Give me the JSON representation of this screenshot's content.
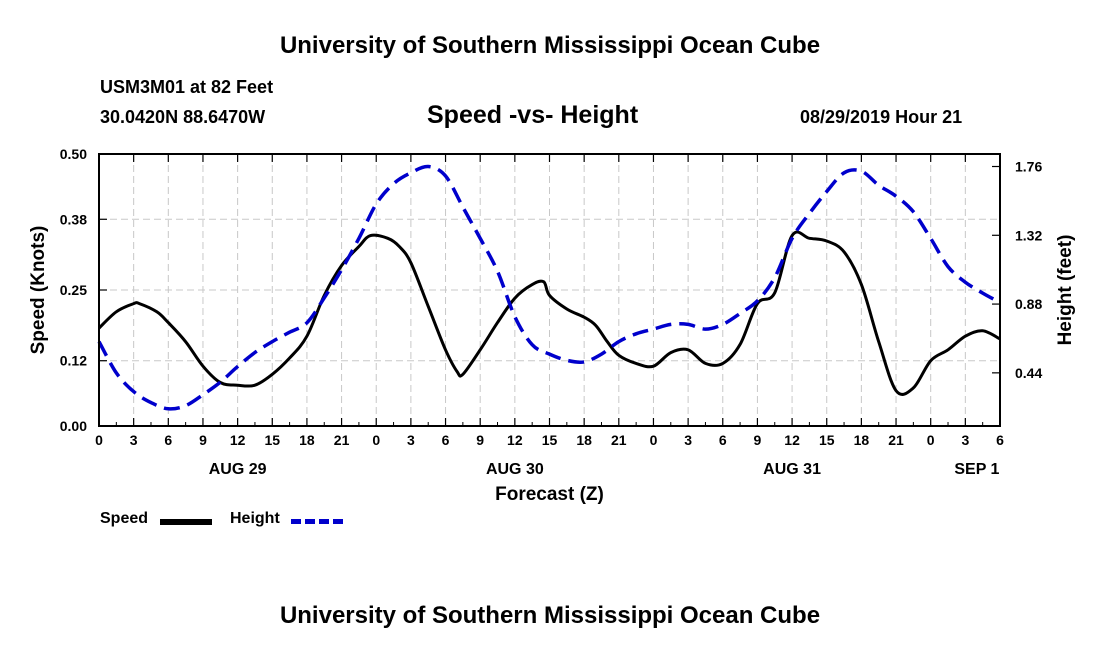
{
  "header": {
    "title": "University of Southern Mississippi Ocean Cube",
    "station": "USM3M01 at 82 Feet",
    "coords": "30.0420N 88.6470W",
    "subtitle": "Speed -vs- Height",
    "datetime": "08/29/2019 Hour 21"
  },
  "footer": {
    "title": "University of Southern Mississippi Ocean Cube"
  },
  "legend": {
    "speed_label": "Speed",
    "height_label": "Height"
  },
  "colors": {
    "speed": "#000000",
    "height": "#0000cc",
    "grid": "#c8c8c8"
  },
  "chart_data": {
    "type": "line",
    "title": "Speed -vs- Height",
    "xlabel": "Forecast (Z)",
    "ylabel": "Speed (Knots)",
    "y2label": "Height (feet)",
    "xlim": [
      0,
      78
    ],
    "ylim": [
      0,
      0.5
    ],
    "y2lim": [
      0.1,
      1.84
    ],
    "xtick_positions": [
      0,
      3,
      6,
      9,
      12,
      15,
      18,
      21,
      24,
      27,
      30,
      33,
      36,
      39,
      42,
      45,
      48,
      51,
      54,
      57,
      60,
      63,
      66,
      69,
      72,
      75,
      78
    ],
    "xtick_labels": [
      "0",
      "3",
      "6",
      "9",
      "12",
      "15",
      "18",
      "21",
      "0",
      "3",
      "6",
      "9",
      "12",
      "15",
      "18",
      "21",
      "0",
      "3",
      "6",
      "9",
      "12",
      "15",
      "18",
      "21",
      "0",
      "3",
      "6"
    ],
    "date_labels": [
      {
        "x": 12,
        "label": "AUG 29"
      },
      {
        "x": 36,
        "label": "AUG 30"
      },
      {
        "x": 60,
        "label": "AUG 31"
      },
      {
        "x": 76,
        "label": "SEP 1"
      }
    ],
    "yticks": [
      0.0,
      0.12,
      0.25,
      0.38,
      0.5
    ],
    "ytick_labels": [
      "0.00",
      "0.12",
      "0.25",
      "0.38",
      "0.50"
    ],
    "y2ticks": [
      0.44,
      0.88,
      1.32,
      1.76
    ],
    "y2tick_labels": [
      "0.44",
      "0.88",
      "1.32",
      "1.76"
    ],
    "series": [
      {
        "name": "Speed",
        "axis": "left",
        "style": "solid",
        "x": [
          0,
          1.5,
          3,
          3.5,
          5,
          6,
          7.5,
          9,
          10.5,
          12,
          13.5,
          15,
          16.5,
          18,
          19.5,
          21,
          22.5,
          23.5,
          25,
          26,
          27,
          28.5,
          30,
          31,
          31.5,
          33,
          34.5,
          36,
          37.5,
          38.5,
          39,
          40.5,
          42,
          43,
          44,
          45,
          46.5,
          48,
          49.5,
          51,
          52.5,
          54,
          55.5,
          57,
          58.5,
          60,
          61.5,
          63,
          64.5,
          66,
          67.5,
          69,
          70.5,
          72,
          73.5,
          75,
          76.5,
          78
        ],
        "values": [
          0.18,
          0.21,
          0.225,
          0.225,
          0.21,
          0.19,
          0.155,
          0.11,
          0.08,
          0.075,
          0.075,
          0.095,
          0.125,
          0.165,
          0.24,
          0.295,
          0.33,
          0.35,
          0.345,
          0.33,
          0.3,
          0.22,
          0.14,
          0.1,
          0.095,
          0.14,
          0.19,
          0.235,
          0.26,
          0.265,
          0.24,
          0.215,
          0.2,
          0.185,
          0.155,
          0.13,
          0.115,
          0.11,
          0.135,
          0.14,
          0.115,
          0.115,
          0.15,
          0.225,
          0.245,
          0.35,
          0.345,
          0.34,
          0.32,
          0.26,
          0.155,
          0.065,
          0.07,
          0.12,
          0.14,
          0.165,
          0.175,
          0.16
        ]
      },
      {
        "name": "Height",
        "axis": "right",
        "style": "dashed",
        "x": [
          0,
          1.5,
          3,
          4.5,
          6,
          7.5,
          9,
          10.5,
          12,
          13.5,
          15,
          16.5,
          18,
          19.5,
          21,
          22.5,
          24,
          25.5,
          27,
          28.5,
          30,
          31.5,
          33,
          34.5,
          36,
          37.5,
          39,
          40.5,
          42,
          43.5,
          45,
          46.5,
          48,
          49.5,
          51,
          52.5,
          54,
          55.5,
          57,
          58.5,
          60,
          61.5,
          63,
          64.5,
          66,
          67.5,
          69,
          70.5,
          72,
          73.5,
          75,
          76.5,
          78
        ],
        "values": [
          0.64,
          0.44,
          0.32,
          0.25,
          0.21,
          0.23,
          0.3,
          0.38,
          0.48,
          0.57,
          0.64,
          0.7,
          0.76,
          0.92,
          1.1,
          1.3,
          1.52,
          1.65,
          1.72,
          1.76,
          1.7,
          1.5,
          1.3,
          1.09,
          0.8,
          0.62,
          0.56,
          0.52,
          0.51,
          0.56,
          0.64,
          0.69,
          0.72,
          0.75,
          0.75,
          0.72,
          0.75,
          0.82,
          0.9,
          1.05,
          1.3,
          1.46,
          1.6,
          1.72,
          1.73,
          1.64,
          1.57,
          1.47,
          1.3,
          1.12,
          1.02,
          0.95,
          0.89
        ]
      }
    ]
  }
}
